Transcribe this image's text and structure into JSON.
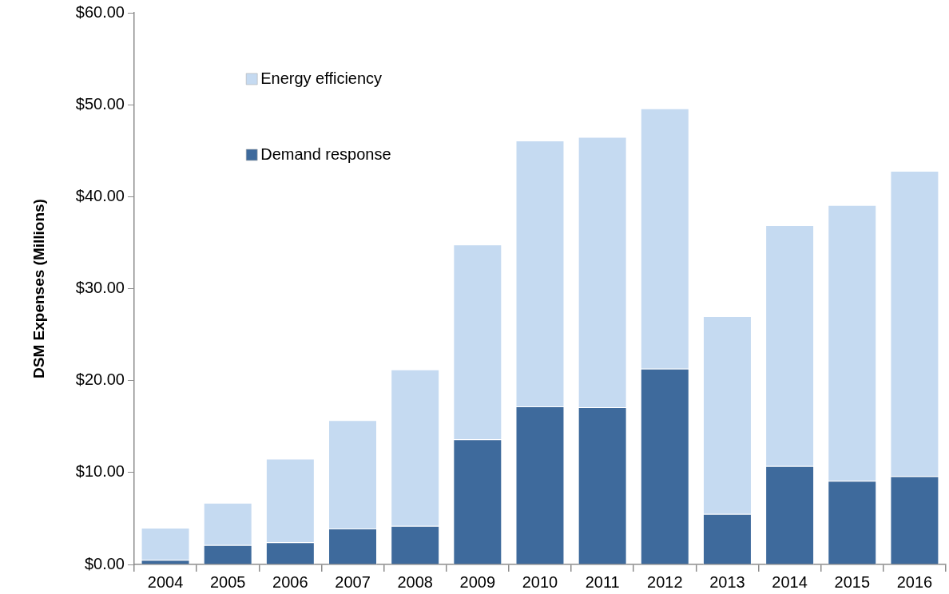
{
  "chart_data": {
    "type": "bar",
    "stacked": true,
    "ylabel": "DSM Expenses (Millions)",
    "categories": [
      "2004",
      "2005",
      "2006",
      "2007",
      "2008",
      "2009",
      "2010",
      "2011",
      "2012",
      "2013",
      "2014",
      "2015",
      "2016"
    ],
    "series": [
      {
        "name": "Demand response",
        "color": "#3e6a9c",
        "values": [
          0.5,
          2.1,
          2.4,
          3.9,
          4.2,
          13.6,
          17.2,
          17.1,
          21.3,
          5.5,
          10.7,
          9.1,
          9.6
        ]
      },
      {
        "name": "Energy efficiency",
        "color": "#c5daf1",
        "values": [
          3.5,
          4.6,
          9.1,
          11.8,
          17.0,
          21.2,
          28.9,
          29.4,
          28.3,
          21.5,
          26.2,
          30.0,
          33.2
        ]
      }
    ],
    "ylim": [
      0,
      60
    ],
    "yticks": [
      {
        "value": 0,
        "label": "$0.00"
      },
      {
        "value": 10,
        "label": "$10.00"
      },
      {
        "value": 20,
        "label": "$20.00"
      },
      {
        "value": 30,
        "label": "$30.00"
      },
      {
        "value": 40,
        "label": "$40.00"
      },
      {
        "value": 50,
        "label": "$50.00"
      },
      {
        "value": 60,
        "label": "$60.00"
      }
    ],
    "legend": "top left"
  }
}
